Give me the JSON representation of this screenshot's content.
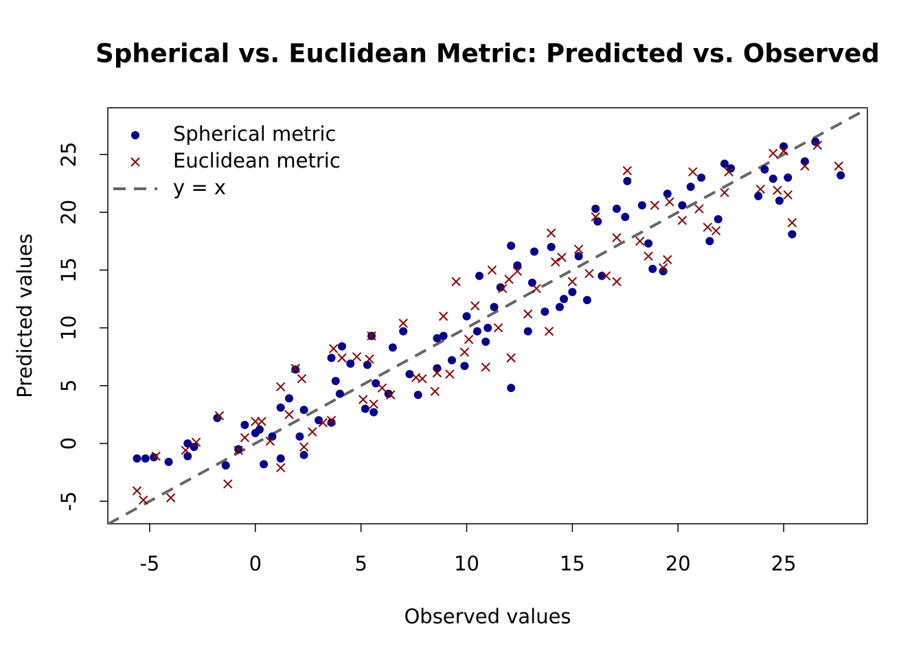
{
  "chart_data": {
    "type": "scatter",
    "title": "Spherical vs. Euclidean Metric: Predicted vs. Observed",
    "x_label": "Observed values",
    "y_label": "Predicted values",
    "xlim": [
      -6.98,
      28.96
    ],
    "ylim": [
      -6.95,
      29.04
    ],
    "xticks": [
      -5,
      0,
      5,
      10,
      15,
      20,
      25
    ],
    "yticks": [
      -5,
      0,
      5,
      10,
      15,
      20,
      25
    ],
    "legend_position": "top-left",
    "series": [
      {
        "name": "Spherical metric",
        "color": "#00008b",
        "marker": "circle",
        "x": [
          -5.6,
          -5.2,
          -4.8,
          -4.1,
          -3.2,
          -3.2,
          -2.9,
          -1.8,
          -1.4,
          -0.8,
          -0.5,
          0,
          0.2,
          0.4,
          0.8,
          1.2,
          1.2,
          1.6,
          1.9,
          2.1,
          2.3,
          2.3,
          3,
          3.6,
          3.6,
          3.8,
          4,
          4.1,
          4.5,
          5.2,
          5.3,
          5.5,
          5.6,
          5.7,
          6.3,
          6.5,
          7,
          7.3,
          7.7,
          8.6,
          8.6,
          8.9,
          9.3,
          9.9,
          10,
          10.5,
          10.6,
          10.9,
          11,
          11.3,
          11.6,
          12.1,
          12.1,
          12.4,
          12.9,
          13.1,
          13.2,
          13.7,
          14,
          14.4,
          14.6,
          15,
          15.3,
          15.7,
          16.1,
          16.2,
          16.4,
          17.1,
          17.5,
          17.6,
          18.3,
          18.6,
          18.8,
          19.3,
          19.5,
          20.2,
          20.6,
          21.1,
          21.5,
          21.9,
          22.2,
          22.5,
          23.8,
          24.1,
          24.5,
          24.8,
          25,
          25.2,
          25.4,
          26,
          26.5,
          27.7
        ],
        "values": [
          -1.3,
          -1.3,
          -1.2,
          -1.6,
          0,
          -1.1,
          -0.3,
          2.2,
          -1.9,
          -0.5,
          1.6,
          0.9,
          1.2,
          -1.8,
          0.6,
          3.1,
          -1.3,
          3.9,
          6.4,
          0.6,
          -1,
          2.9,
          2,
          1.8,
          7.4,
          5.4,
          4.3,
          8.4,
          6.9,
          3,
          6.8,
          9.3,
          2.7,
          5.2,
          4.3,
          8.3,
          9.7,
          6,
          4.2,
          9.1,
          6.5,
          9.3,
          7.2,
          6.7,
          11,
          9.7,
          14.5,
          8.8,
          10,
          11.8,
          13.5,
          4.8,
          17.1,
          15.4,
          9.7,
          13.9,
          16.6,
          11.4,
          17,
          11.8,
          12.5,
          13.1,
          16.2,
          12.4,
          20.3,
          19.2,
          14.5,
          20.3,
          19.6,
          22.7,
          20.6,
          17.3,
          15.1,
          14.9,
          21.6,
          20.6,
          22.2,
          23,
          17.5,
          19.4,
          24.2,
          23.8,
          21.4,
          23.7,
          22.9,
          21,
          25.7,
          23,
          18.1,
          24.4,
          26.1,
          23.2
        ]
      },
      {
        "name": "Euclidean metric",
        "color": "#8b0000",
        "marker": "cross",
        "x": [
          -5.6,
          -5.3,
          -4.7,
          -4,
          -3.3,
          -2.8,
          -1.7,
          -1.3,
          -0.8,
          -0.5,
          0,
          0.3,
          0.7,
          1.2,
          1.2,
          1.6,
          1.9,
          2.2,
          2.3,
          2.7,
          3.2,
          3.6,
          3.7,
          4.1,
          4.8,
          5.1,
          5.4,
          5.5,
          5.6,
          6,
          6.4,
          7,
          7.6,
          7.9,
          8.5,
          8.6,
          8.9,
          9.2,
          9.5,
          9.9,
          10.1,
          10.4,
          10.9,
          11.2,
          11.5,
          11.7,
          12,
          12.1,
          12.4,
          12.9,
          13.3,
          13.9,
          14,
          14.2,
          14.5,
          15,
          15.3,
          15.8,
          16.1,
          16.6,
          17.1,
          17.1,
          17.6,
          18.2,
          18.6,
          18.9,
          19.3,
          19.5,
          19.6,
          20.2,
          20.7,
          21,
          21.4,
          21.8,
          22.2,
          22.4,
          23.9,
          24.5,
          24.7,
          25,
          25.2,
          25.4,
          26,
          26.6,
          27.6
        ],
        "values": [
          -4.1,
          -4.9,
          -1.1,
          -4.7,
          -0.6,
          0.1,
          2.4,
          -3.5,
          -0.6,
          0.5,
          1.9,
          1.9,
          0.2,
          -2.1,
          4.9,
          2.5,
          6.5,
          5.6,
          -0.3,
          1,
          1.8,
          2,
          8.2,
          7.4,
          7.5,
          3.8,
          7.3,
          9.3,
          3.4,
          4.8,
          4.2,
          10.4,
          5.7,
          5.6,
          4.5,
          6.1,
          11,
          6,
          14,
          7.9,
          9,
          11.9,
          6.6,
          15,
          10,
          13.4,
          14.2,
          7.4,
          14.9,
          11.2,
          13.4,
          9.7,
          18.2,
          15.7,
          16.1,
          14,
          16.8,
          14.7,
          19.6,
          14.5,
          14,
          17.8,
          23.6,
          17.5,
          16.2,
          20.6,
          15.2,
          15.9,
          20.9,
          19.3,
          23.5,
          20.3,
          18.7,
          18.4,
          21.7,
          23.5,
          22,
          25.1,
          21.9,
          25.3,
          21.5,
          19.1,
          24,
          25.8,
          24
        ]
      }
    ],
    "reference_line": {
      "name": "y = x",
      "slope": 1,
      "intercept": 0,
      "color": "#666666",
      "dashed": true
    }
  }
}
